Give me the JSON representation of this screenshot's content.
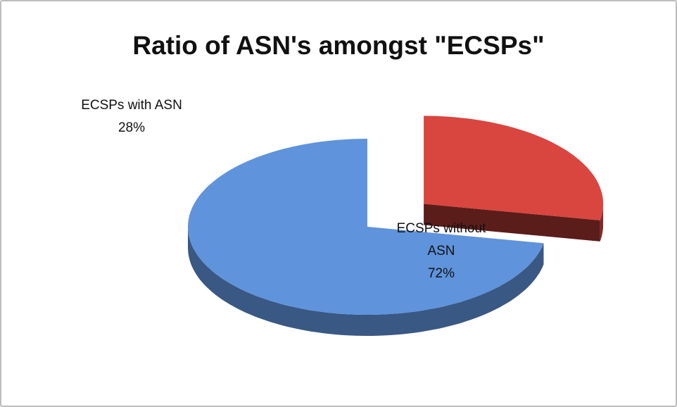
{
  "chart_data": {
    "type": "pie",
    "title": "Ratio of ASN's amongst \"ECSPs\"",
    "categories": [
      "ECSPs with ASN",
      "ECSPs without ASN"
    ],
    "values": [
      28,
      72
    ],
    "value_labels": [
      "28%",
      "72%"
    ],
    "colors": [
      "#d9463f",
      "#5f93dc"
    ]
  }
}
